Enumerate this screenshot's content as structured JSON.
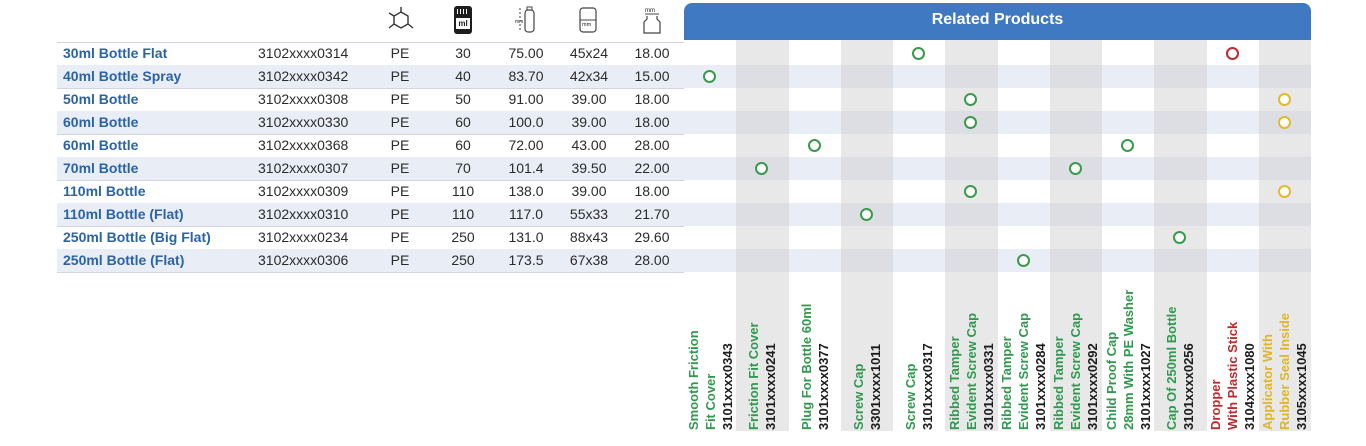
{
  "header": {
    "related_title": "Related Products"
  },
  "header_icons": {
    "material": "polymer-structure-icon",
    "capacity": "ml-capacity-icon",
    "height": "height-mm-icon",
    "diameter": "diameter-mm-icon",
    "neck": "neck-mm-icon",
    "ml_text": "ml",
    "mm_text": "mm"
  },
  "products": [
    {
      "name": "30ml Bottle Flat",
      "code": "3102xxxx0314",
      "material": "PE",
      "capacity": "30",
      "height": "75.00",
      "diameter": "45x24",
      "neck": "18.00"
    },
    {
      "name": "40ml Bottle Spray",
      "code": "3102xxxx0342",
      "material": "PE",
      "capacity": "40",
      "height": "83.70",
      "diameter": "42x34",
      "neck": "15.00"
    },
    {
      "name": "50ml Bottle",
      "code": "3102xxxx0308",
      "material": "PE",
      "capacity": "50",
      "height": "91.00",
      "diameter": "39.00",
      "neck": "18.00"
    },
    {
      "name": "60ml Bottle",
      "code": "3102xxxx0330",
      "material": "PE",
      "capacity": "60",
      "height": "100.0",
      "diameter": "39.00",
      "neck": "18.00"
    },
    {
      "name": "60ml Bottle",
      "code": "3102xxxx0368",
      "material": "PE",
      "capacity": "60",
      "height": "72.00",
      "diameter": "43.00",
      "neck": "28.00"
    },
    {
      "name": "70ml Bottle",
      "code": "3102xxxx0307",
      "material": "PE",
      "capacity": "70",
      "height": "101.4",
      "diameter": "39.50",
      "neck": "22.00"
    },
    {
      "name": "110ml Bottle",
      "code": "3102xxxx0309",
      "material": "PE",
      "capacity": "110",
      "height": "138.0",
      "diameter": "39.00",
      "neck": "18.00"
    },
    {
      "name": "110ml Bottle (Flat)",
      "code": "3102xxxx0310",
      "material": "PE",
      "capacity": "110",
      "height": "117.0",
      "diameter": "55x33",
      "neck": "21.70"
    },
    {
      "name": "250ml Bottle (Big Flat)",
      "code": "3102xxxx0234",
      "material": "PE",
      "capacity": "250",
      "height": "131.0",
      "diameter": "88x43",
      "neck": "29.60"
    },
    {
      "name": "250ml Bottle (Flat)",
      "code": "3102xxxx0306",
      "material": "PE",
      "capacity": "250",
      "height": "173.5",
      "diameter": "67x38",
      "neck": "28.00"
    }
  ],
  "related": [
    {
      "lines": [
        "Smooth Friction",
        "Fit Cover"
      ],
      "code": "3101xxxx0343",
      "color": "green"
    },
    {
      "lines": [
        "Friction Fit Cover"
      ],
      "code": "3101xxxx0241",
      "color": "green"
    },
    {
      "lines": [
        "Plug For Bottle 60ml"
      ],
      "code": "3101xxxx0377",
      "color": "green"
    },
    {
      "lines": [
        "Screw Cap"
      ],
      "code": "3301xxxx1011",
      "color": "green"
    },
    {
      "lines": [
        "Screw Cap"
      ],
      "code": "3101xxxx0317",
      "color": "green"
    },
    {
      "lines": [
        "Ribbed Tamper",
        "Evident Screw Cap"
      ],
      "code": "3101xxxx0331",
      "color": "green"
    },
    {
      "lines": [
        "Ribbed Tamper",
        "Evident Screw Cap"
      ],
      "code": "3101xxxx0284",
      "color": "green"
    },
    {
      "lines": [
        "Ribbed Tamper",
        "Evident Screw Cap"
      ],
      "code": "3101xxxx0292",
      "color": "green"
    },
    {
      "lines": [
        "Child Proof Cap",
        "28mm With PE Washer"
      ],
      "code": "3101xxxx1027",
      "color": "green"
    },
    {
      "lines": [
        "Cap Of 250ml Bottle"
      ],
      "code": "3101xxxx0256",
      "color": "green"
    },
    {
      "lines": [
        "Dropper",
        "With Plastic Stick"
      ],
      "code": "3104xxxx1080",
      "color": "red"
    },
    {
      "lines": [
        "Applicator With",
        "Rubber Seal Inside"
      ],
      "code": "3105xxxx1045",
      "color": "yellow"
    }
  ],
  "matches": [
    {
      "row": 0,
      "col": 4,
      "color": "green"
    },
    {
      "row": 0,
      "col": 10,
      "color": "red"
    },
    {
      "row": 1,
      "col": 0,
      "color": "green"
    },
    {
      "row": 2,
      "col": 5,
      "color": "green"
    },
    {
      "row": 2,
      "col": 11,
      "color": "yellow"
    },
    {
      "row": 3,
      "col": 5,
      "color": "green"
    },
    {
      "row": 3,
      "col": 11,
      "color": "yellow"
    },
    {
      "row": 4,
      "col": 2,
      "color": "green"
    },
    {
      "row": 4,
      "col": 8,
      "color": "green"
    },
    {
      "row": 5,
      "col": 1,
      "color": "green"
    },
    {
      "row": 5,
      "col": 7,
      "color": "green"
    },
    {
      "row": 6,
      "col": 5,
      "color": "green"
    },
    {
      "row": 6,
      "col": 11,
      "color": "yellow"
    },
    {
      "row": 7,
      "col": 3,
      "color": "green"
    },
    {
      "row": 8,
      "col": 9,
      "color": "green"
    },
    {
      "row": 9,
      "col": 6,
      "color": "green"
    }
  ],
  "colors": {
    "accent": "#3f79c2",
    "name_text": "#2a63a6",
    "alt_row": "#e9edf6",
    "match_green": "#3a9a4c",
    "match_red": "#c0292e",
    "match_yellow": "#e4b830"
  }
}
